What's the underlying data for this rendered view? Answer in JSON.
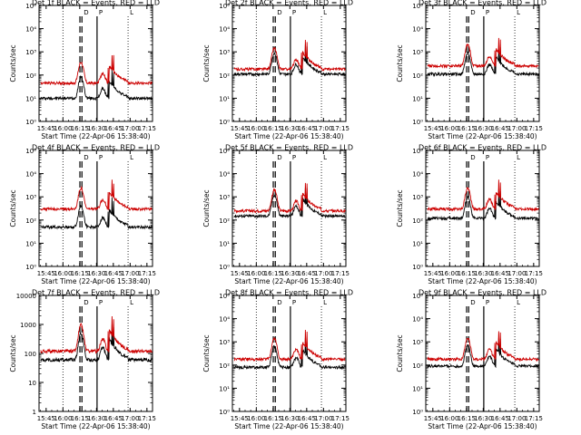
{
  "chart_data": [
    {
      "type": "line",
      "title": "Det 1f BLACK = Events, RED = LLD",
      "xlabel": "Start Time (22-Apr-06 15:38:40)",
      "ylabel": "Counts/sec",
      "ylim": [
        1,
        100000
      ],
      "y_tick_labels": [
        "10⁰",
        "10¹",
        "10²",
        "10³",
        "10⁴",
        "10⁵"
      ],
      "x_tick_labels": [
        "15:45",
        "16:00",
        "16:15",
        "16:30",
        "16:45",
        "17:00",
        "17:15"
      ],
      "marker_labels": {
        "dashed": "D",
        "solid": "P",
        "dotted_end": "L"
      },
      "series": [
        {
          "name": "Events",
          "color": "#000000",
          "base": 10
        },
        {
          "name": "LLD",
          "color": "#cc0000",
          "base": 45
        }
      ]
    },
    {
      "type": "line",
      "title": "Det 2f BLACK = Events, RED = LLD",
      "xlabel": "Start Time (22-Apr-06 15:38:40)",
      "ylabel": "Counts/sec",
      "ylim": [
        1,
        100000
      ],
      "y_tick_labels": [
        "10⁰",
        "10¹",
        "10²",
        "10³",
        "10⁴",
        "10⁵"
      ],
      "x_tick_labels": [
        "15:45",
        "16:00",
        "16:15",
        "16:30",
        "16:45",
        "17:00",
        "17:15"
      ],
      "marker_labels": {
        "dashed": "D",
        "solid": "P",
        "dotted_end": "L"
      },
      "series": [
        {
          "name": "Events",
          "color": "#000000",
          "base": 110
        },
        {
          "name": "LLD",
          "color": "#cc0000",
          "base": 180
        }
      ]
    },
    {
      "type": "line",
      "title": "Det 3f BLACK = Events, RED = LLD",
      "xlabel": "Start Time (22-Apr-06 15:38:40)",
      "ylabel": "Counts/sec",
      "ylim": [
        1,
        100000
      ],
      "y_tick_labels": [
        "10⁰",
        "10¹",
        "10²",
        "10³",
        "10⁴",
        "10⁵"
      ],
      "x_tick_labels": [
        "15:45",
        "16:00",
        "16:15",
        "16:30",
        "16:45",
        "17:00",
        "17:15"
      ],
      "marker_labels": {
        "dashed": "D",
        "solid": "P",
        "dotted_end": "L"
      },
      "series": [
        {
          "name": "Events",
          "color": "#000000",
          "base": 110
        },
        {
          "name": "LLD",
          "color": "#cc0000",
          "base": 250
        }
      ]
    },
    {
      "type": "line",
      "title": "Det 4f BLACK = Events, RED = LLD",
      "xlabel": "Start Time (22-Apr-06 15:38:40)",
      "ylabel": "Counts/sec",
      "ylim": [
        1,
        100000
      ],
      "y_tick_labels": [
        "10⁰",
        "10¹",
        "10²",
        "10³",
        "10⁴",
        "10⁵"
      ],
      "x_tick_labels": [
        "15:45",
        "16:00",
        "16:15",
        "16:30",
        "16:45",
        "17:00",
        "17:15"
      ],
      "marker_labels": {
        "dashed": "D",
        "solid": "P",
        "dotted_end": "L"
      },
      "series": [
        {
          "name": "Events",
          "color": "#000000",
          "base": 50
        },
        {
          "name": "LLD",
          "color": "#cc0000",
          "base": 300
        }
      ]
    },
    {
      "type": "line",
      "title": "Det 5f BLACK = Events, RED = LLD",
      "xlabel": "Start Time (22-Apr-06 15:38:40)",
      "ylabel": "Counts/sec",
      "ylim": [
        1,
        100000
      ],
      "y_tick_labels": [
        "10⁰",
        "10¹",
        "10²",
        "10³",
        "10⁴",
        "10⁵"
      ],
      "x_tick_labels": [
        "15:45",
        "16:00",
        "16:15",
        "16:30",
        "16:45",
        "17:00",
        "17:15"
      ],
      "marker_labels": {
        "dashed": "D",
        "solid": "P",
        "dotted_end": "L"
      },
      "series": [
        {
          "name": "Events",
          "color": "#000000",
          "base": 150
        },
        {
          "name": "LLD",
          "color": "#cc0000",
          "base": 250
        }
      ]
    },
    {
      "type": "line",
      "title": "Det 6f BLACK = Events, RED = LLD",
      "xlabel": "Start Time (22-Apr-06 15:38:40)",
      "ylabel": "Counts/sec",
      "ylim": [
        1,
        100000
      ],
      "y_tick_labels": [
        "10⁰",
        "10¹",
        "10²",
        "10³",
        "10⁴",
        "10⁵"
      ],
      "x_tick_labels": [
        "15:45",
        "16:00",
        "16:15",
        "16:30",
        "16:45",
        "17:00",
        "17:15"
      ],
      "marker_labels": {
        "dashed": "D",
        "solid": "P",
        "dotted_end": "L"
      },
      "series": [
        {
          "name": "Events",
          "color": "#000000",
          "base": 120
        },
        {
          "name": "LLD",
          "color": "#cc0000",
          "base": 300
        }
      ]
    },
    {
      "type": "line",
      "title": "Det 7f BLACK = Events, RED = LLD",
      "xlabel": "Start Time (22-Apr-06 15:38:40)",
      "ylabel": "Counts/sec",
      "ylim": [
        1,
        10000
      ],
      "y_tick_labels": [
        "1",
        "10",
        "100",
        "1000",
        "10000"
      ],
      "x_tick_labels": [
        "15:45",
        "16:00",
        "16:15",
        "16:30",
        "16:45",
        "17:00",
        "17:15"
      ],
      "marker_labels": {
        "dashed": "D",
        "solid": "P",
        "dotted_end": "L"
      },
      "series": [
        {
          "name": "Events",
          "color": "#000000",
          "base": 60
        },
        {
          "name": "LLD",
          "color": "#cc0000",
          "base": 120
        }
      ]
    },
    {
      "type": "line",
      "title": "Det 8f BLACK = Events, RED = LLD",
      "xlabel": "Start Time (22-Apr-06 15:38:40)",
      "ylabel": "Counts/sec",
      "ylim": [
        1,
        100000
      ],
      "y_tick_labels": [
        "10⁰",
        "10¹",
        "10²",
        "10³",
        "10⁴",
        "10⁵"
      ],
      "x_tick_labels": [
        "15:45",
        "16:00",
        "16:15",
        "16:30",
        "16:45",
        "17:00",
        "17:15"
      ],
      "marker_labels": {
        "dashed": "D",
        "solid": "P",
        "dotted_end": "L"
      },
      "series": [
        {
          "name": "Events",
          "color": "#000000",
          "base": 80
        },
        {
          "name": "LLD",
          "color": "#cc0000",
          "base": 180
        }
      ]
    },
    {
      "type": "line",
      "title": "Det 9f BLACK = Events, RED = LLD",
      "xlabel": "Start Time (22-Apr-06 15:38:40)",
      "ylabel": "Counts/sec",
      "ylim": [
        1,
        100000
      ],
      "y_tick_labels": [
        "10⁰",
        "10¹",
        "10²",
        "10³",
        "10⁴",
        "10⁵"
      ],
      "x_tick_labels": [
        "15:45",
        "16:00",
        "16:15",
        "16:30",
        "16:45",
        "17:00",
        "17:15"
      ],
      "marker_labels": {
        "dashed": "D",
        "solid": "P",
        "dotted_end": "L"
      },
      "series": [
        {
          "name": "Events",
          "color": "#000000",
          "base": 90
        },
        {
          "name": "LLD",
          "color": "#cc0000",
          "base": 180
        }
      ]
    }
  ]
}
